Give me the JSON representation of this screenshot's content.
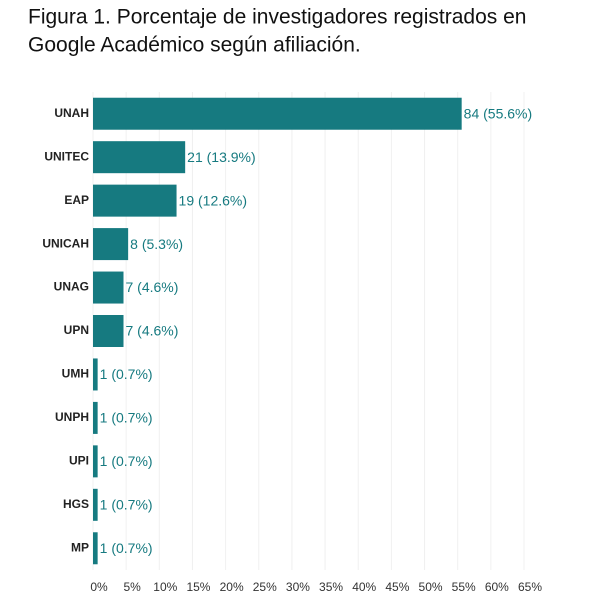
{
  "chart_data": {
    "type": "hbar",
    "title": [
      "Figura 1. Porcentaje de investigadores registrados en",
      "Google Académico según afiliación."
    ],
    "categories": [
      "UNAH",
      "UNITEC",
      "EAP",
      "UNICAH",
      "UNAG",
      "UPN",
      "UMH",
      "UNPH",
      "UPI",
      "HGS",
      "MP"
    ],
    "values": [
      55.6,
      13.9,
      12.6,
      5.3,
      4.6,
      4.6,
      0.7,
      0.7,
      0.7,
      0.7,
      0.7
    ],
    "value_labels": [
      "84 (55.6%)",
      "21 (13.9%)",
      "19 (12.6%)",
      "8 (5.3%)",
      "7 (4.6%)",
      "7 (4.6%)",
      "1 (0.7%)",
      "1 (0.7%)",
      "1 (0.7%)",
      "1 (0.7%)",
      "1 (0.7%)"
    ],
    "color": "#167a80",
    "xlim": [
      0,
      65
    ],
    "xticks": [
      {
        "value": 0,
        "label": "0%"
      },
      {
        "value": 5,
        "label": "5%"
      },
      {
        "value": 10,
        "label": "10%"
      },
      {
        "value": 15,
        "label": "15%"
      },
      {
        "value": 20,
        "label": "20%"
      },
      {
        "value": 25,
        "label": "25%"
      },
      {
        "value": 30,
        "label": "30%"
      },
      {
        "value": 35,
        "label": "35%"
      },
      {
        "value": 40,
        "label": "40%"
      },
      {
        "value": 45,
        "label": "45%"
      },
      {
        "value": 50,
        "label": "50%"
      },
      {
        "value": 55,
        "label": "55%"
      },
      {
        "value": 60,
        "label": "60%"
      },
      {
        "value": 65,
        "label": "65%"
      }
    ],
    "grid": true
  }
}
